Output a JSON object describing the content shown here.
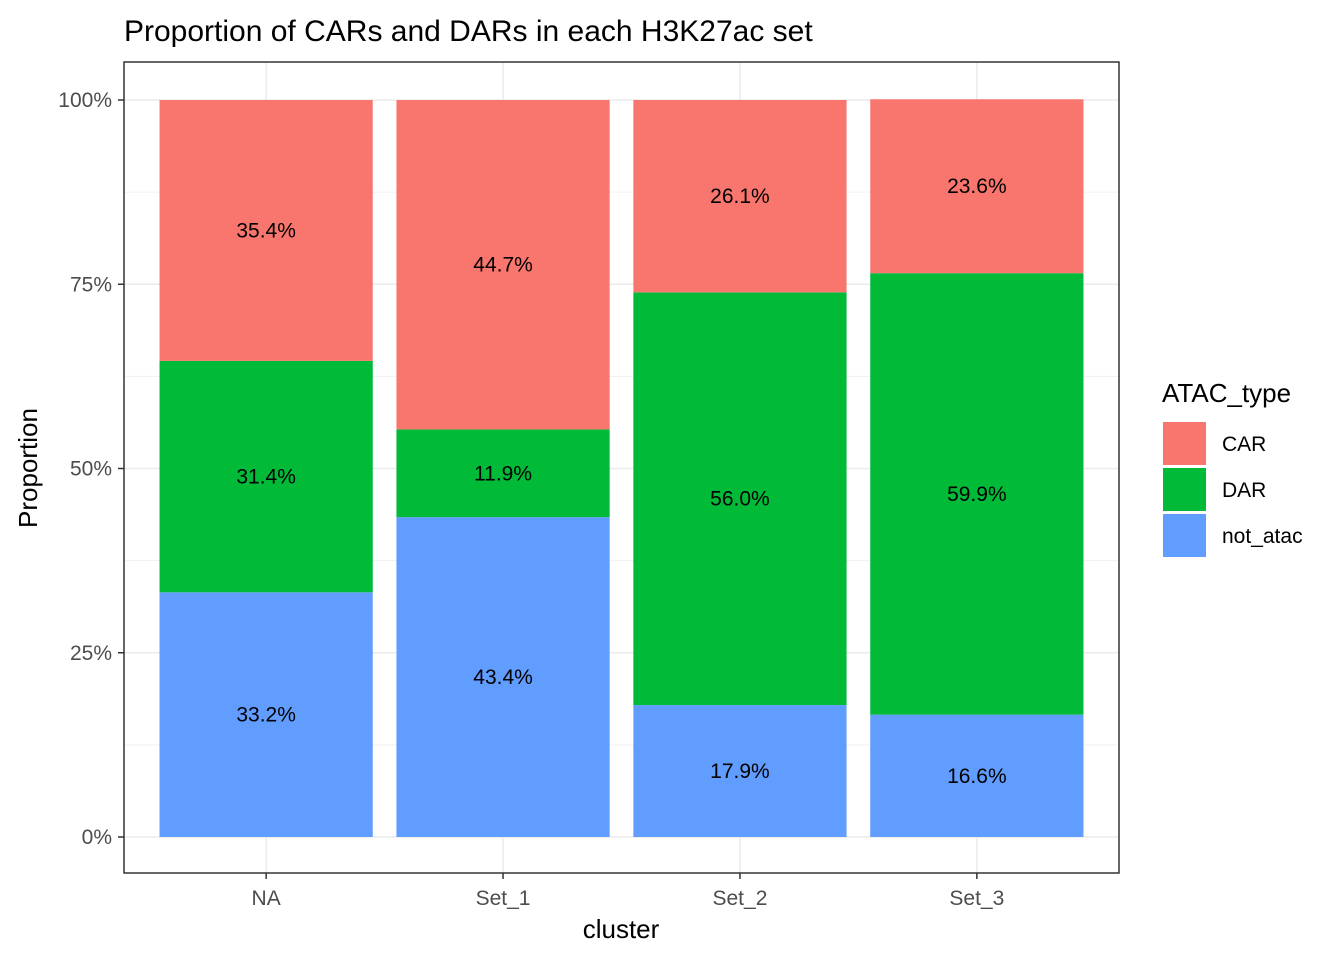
{
  "chart_data": {
    "type": "bar",
    "stacked": true,
    "title": "Proportion of CARs and DARs in each H3K27ac set",
    "xlabel": "cluster",
    "ylabel": "Proportion",
    "ylim": [
      0,
      1
    ],
    "y_ticks": [
      0,
      0.25,
      0.5,
      0.75,
      1
    ],
    "y_tick_labels": [
      "0%",
      "25%",
      "50%",
      "75%",
      "100%"
    ],
    "grid": true,
    "categories": [
      "NA",
      "Set_1",
      "Set_2",
      "Set_3"
    ],
    "series": [
      {
        "name": "not_atac",
        "color": "#619CFF",
        "values": [
          0.332,
          0.434,
          0.179,
          0.166
        ],
        "labels": [
          "33.2%",
          "43.4%",
          "17.9%",
          "16.6%"
        ]
      },
      {
        "name": "DAR",
        "color": "#00BA38",
        "values": [
          0.314,
          0.119,
          0.56,
          0.599
        ],
        "labels": [
          "31.4%",
          "11.9%",
          "56.0%",
          "59.9%"
        ]
      },
      {
        "name": "CAR",
        "color": "#F8766D",
        "values": [
          0.354,
          0.447,
          0.261,
          0.236
        ],
        "labels": [
          "35.4%",
          "44.7%",
          "26.1%",
          "23.6%"
        ]
      }
    ],
    "legend": {
      "title": "ATAC_type",
      "position": "right",
      "items": [
        {
          "label": "CAR",
          "color": "#F8766D"
        },
        {
          "label": "DAR",
          "color": "#00BA38"
        },
        {
          "label": "not_atac",
          "color": "#619CFF"
        }
      ]
    }
  }
}
